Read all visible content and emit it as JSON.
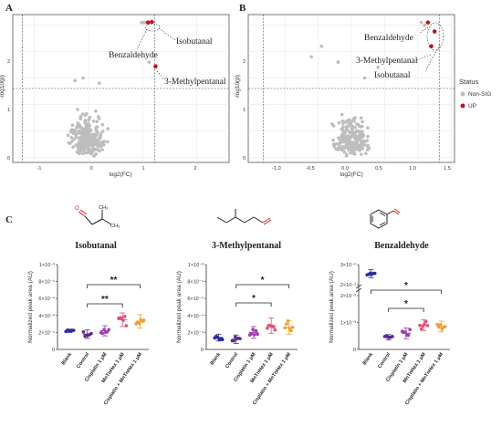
{
  "panels": {
    "A": "A",
    "B": "B",
    "C": "C"
  },
  "volcano_axes": {
    "xlabel": "log2(FC)",
    "ylabel": "-log10(p)"
  },
  "legend": {
    "title": "Status",
    "items": [
      {
        "label": "Non-SIG",
        "color": "#bdbdbd"
      },
      {
        "label": "UP",
        "color": "#c0141c"
      }
    ]
  },
  "annotations_A": {
    "isobutanal": "Isobutanal",
    "benzaldehyde": "Benzaldehyde",
    "methylpentanal": "3-Methylpentanal"
  },
  "annotations_B": {
    "benzaldehyde": "Benzaldehyde",
    "methylpentanal": "3-Methylpentanal",
    "isobutanal": "Isobutanal"
  },
  "compounds": [
    "Isobutanal",
    "3-Methylpentanal",
    "Benzaldehyde"
  ],
  "ylabel_c": "Normalized peak area (AU)",
  "groups": [
    "Blank",
    "Control",
    "Cisplatin 1 μM",
    "MnTnHex 1 μM",
    "Cisplatin + MnTnHex 1 μM"
  ],
  "group_colors": [
    "#2b2b9e",
    "#5b2a8c",
    "#9b3fb0",
    "#e0507a",
    "#f0a030"
  ],
  "stars": {
    "double": "**",
    "single": "*"
  },
  "chart_data": [
    {
      "type": "scatter",
      "title": "",
      "xlabel": "log2(FC)",
      "ylabel": "-log10(p)",
      "xlim": [
        -1.4,
        2.6
      ],
      "ylim": [
        -0.1,
        2.7
      ],
      "xticks": [
        "-1",
        "0",
        "1",
        "2"
      ],
      "yticks": [
        "0",
        "1",
        "2"
      ],
      "series": [
        {
          "name": "Non-SIG",
          "points": "~250 grey points clustered around log2(FC) 0, -log10(p) 0–1.3"
        },
        {
          "name": "UP",
          "points": [
            {
              "x": 1.1,
              "y": 2.55,
              "label": "Benzaldehyde"
            },
            {
              "x": 1.17,
              "y": 2.56,
              "label": "Isobutanal"
            },
            {
              "x": 1.24,
              "y": 1.72,
              "label": "3-Methylpentanal"
            }
          ]
        }
      ]
    },
    {
      "type": "scatter",
      "title": "",
      "xlabel": "log2(FC)",
      "ylabel": "-log10(p)",
      "xlim": [
        -1.55,
        1.55
      ],
      "ylim": [
        -0.1,
        2.7
      ],
      "xticks": [
        "-1.0",
        "-0.5",
        "0.0",
        "0.5",
        "1.0",
        "1.5"
      ],
      "yticks": [
        "0",
        "1",
        "2"
      ],
      "series": [
        {
          "name": "Non-SIG",
          "points": "~200 grey points clustered around log2(FC) 0, -log10(p) 0–1.3"
        },
        {
          "name": "UP",
          "points": [
            {
              "x": 1.15,
              "y": 2.55,
              "label": "Benzaldehyde"
            },
            {
              "x": 1.25,
              "y": 2.38,
              "label": "Isobutanal"
            },
            {
              "x": 1.2,
              "y": 2.1,
              "label": "3-Methylpentanal"
            }
          ]
        }
      ]
    },
    {
      "type": "scatter",
      "title": "Isobutanal",
      "ylabel": "Normalized peak area (AU)",
      "ylim": [
        0,
        0.001
      ],
      "yticks": [
        "0",
        "2×10⁻⁴",
        "4×10⁻⁴",
        "6×10⁻⁴",
        "8×10⁻⁴",
        "1×10⁻³"
      ],
      "categories": [
        "Blank",
        "Control",
        "Cisplatin 1 μM",
        "MnTnHex 1 μM",
        "Cisplatin + MnTnHex 1 μM"
      ],
      "mean": [
        0.00022,
        0.00018,
        0.00022,
        0.00035,
        0.00033
      ],
      "sd": [
        2e-05,
        5e-05,
        6e-05,
        8e-05,
        8e-05
      ],
      "significance": [
        {
          "groups": [
            "Control",
            "MnTnHex 1 μM"
          ],
          "label": "**"
        },
        {
          "groups": [
            "Control",
            "Cisplatin + MnTnHex 1 μM"
          ],
          "label": "**"
        }
      ]
    },
    {
      "type": "scatter",
      "title": "3-Methylpentanal",
      "ylabel": "Normalized peak area (AU)",
      "ylim": [
        0,
        0.001
      ],
      "yticks": [
        "0",
        "2×10⁻⁴",
        "4×10⁻⁴",
        "6×10⁻⁴",
        "8×10⁻⁴",
        "1×10⁻³"
      ],
      "categories": [
        "Blank",
        "Control",
        "Cisplatin 1 μM",
        "MnTnHex 1 μM",
        "Cisplatin + MnTnHex 1 μM"
      ],
      "mean": [
        0.00014,
        0.00012,
        0.0002,
        0.00028,
        0.00026
      ],
      "sd": [
        4e-05,
        5e-05,
        7e-05,
        9e-05,
        8e-05
      ],
      "significance": [
        {
          "groups": [
            "Control",
            "MnTnHex 1 μM"
          ],
          "label": "*"
        },
        {
          "groups": [
            "Control",
            "Cisplatin + MnTnHex 1 μM"
          ],
          "label": "*"
        }
      ]
    },
    {
      "type": "scatter",
      "title": "Benzaldehyde",
      "ylabel": "Normalized peak area (AU)",
      "yticks_upper": [
        "2×10⁻²",
        "3×10⁻²"
      ],
      "yticks_lower": [
        "0",
        "1×10⁻³",
        "2×10⁻³"
      ],
      "categories": [
        "Blank",
        "Control",
        "Cisplatin 1 μM",
        "MnTnHex 1 μM",
        "Cisplatin + MnTnHex 1 μM"
      ],
      "mean": [
        0.0255,
        0.00045,
        0.0006,
        0.0009,
        0.00085
      ],
      "sd": [
        0.002,
        0.0001,
        0.0002,
        0.0002,
        0.0002
      ],
      "significance": [
        {
          "groups": [
            "Control",
            "MnTnHex 1 μM"
          ],
          "label": "*"
        },
        {
          "groups": [
            "Blank",
            "Cisplatin + MnTnHex 1 μM"
          ],
          "label": "*"
        }
      ]
    }
  ]
}
